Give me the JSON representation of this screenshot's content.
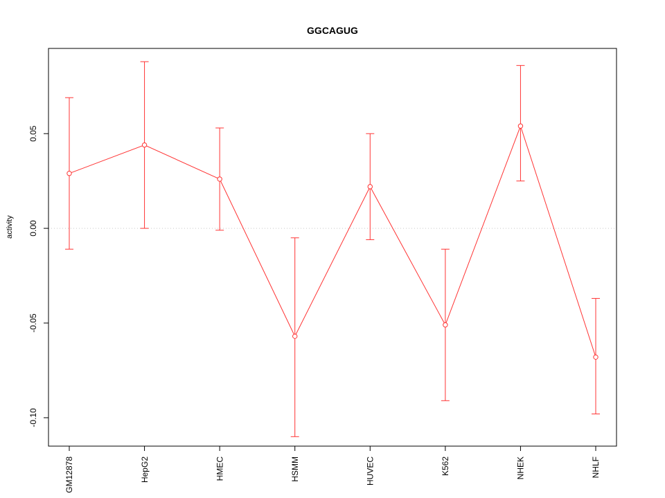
{
  "chart_data": {
    "type": "line",
    "title": "GGCAGUG",
    "xlabel": "",
    "ylabel": "activity",
    "categories": [
      "GM12878",
      "HepG2",
      "HMEC",
      "HSMM",
      "HUVEC",
      "K562",
      "NHEK",
      "NHLF"
    ],
    "series": [
      {
        "name": "activity_mean",
        "values": [
          0.029,
          0.044,
          0.026,
          -0.057,
          0.022,
          -0.051,
          0.054,
          -0.068
        ]
      },
      {
        "name": "upper_error",
        "values": [
          0.069,
          0.088,
          0.053,
          -0.005,
          0.05,
          -0.011,
          0.086,
          -0.037
        ]
      },
      {
        "name": "lower_error",
        "values": [
          -0.011,
          0.0,
          -0.001,
          -0.11,
          -0.006,
          -0.091,
          0.025,
          -0.098
        ]
      }
    ],
    "ylim": [
      -0.115,
      0.095
    ],
    "yticks": [
      0.05,
      0.0,
      -0.05,
      -0.1
    ],
    "ytick_labels": [
      "0.05",
      "0.00",
      "-0.05",
      "-0.10"
    ],
    "grid": "dotted line at y=0 only",
    "legend_position": "none",
    "colors": {
      "line": "#ff3333",
      "point_fill": "#ffffff",
      "axis": "#000000",
      "gridline": "#c8c8c8",
      "text": "#000000"
    },
    "point_style": "open-circle",
    "error_bars": true
  }
}
